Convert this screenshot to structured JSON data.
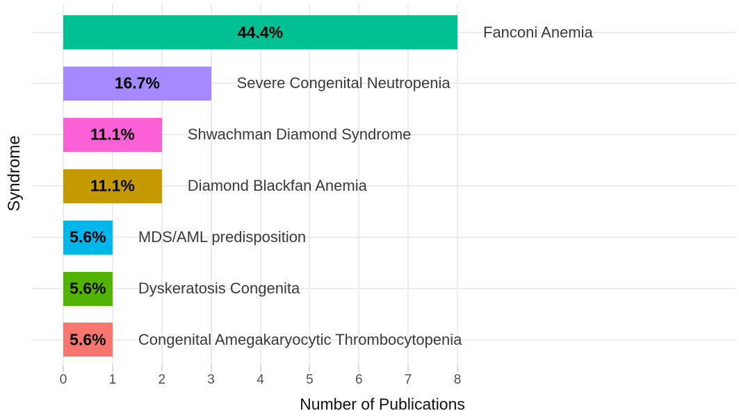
{
  "chart_data": {
    "type": "bar",
    "orientation": "horizontal",
    "title": "",
    "xlabel": "Number of Publications",
    "ylabel": "Syndrome",
    "xlim": [
      0,
      8
    ],
    "x_ticks": [
      0,
      1,
      2,
      3,
      4,
      5,
      6,
      7,
      8
    ],
    "grid": "major",
    "legend": "none",
    "background_color": "#ffffff",
    "gridline_color": "#ececec",
    "categories": [
      "Fanconi Anemia",
      "Severe Congenital Neutropenia",
      "Shwachman Diamond Syndrome",
      "Diamond Blackfan Anemia",
      "MDS/AML predisposition",
      "Dyskeratosis Congenita",
      "Congenital Amegakaryocytic Thrombocytopenia"
    ],
    "values": [
      8,
      3,
      2,
      2,
      1,
      1,
      1
    ],
    "bars": [
      {
        "category": "Fanconi Anemia",
        "value": 8,
        "pct_label": "44.4%",
        "color": "#00C094"
      },
      {
        "category": "Severe Congenital Neutropenia",
        "value": 3,
        "pct_label": "16.7%",
        "color": "#A58AFF"
      },
      {
        "category": "Shwachman Diamond Syndrome",
        "value": 2,
        "pct_label": "11.1%",
        "color": "#FB61D7"
      },
      {
        "category": "Diamond Blackfan Anemia",
        "value": 2,
        "pct_label": "11.1%",
        "color": "#C49A00"
      },
      {
        "category": "MDS/AML predisposition",
        "value": 1,
        "pct_label": "5.6%",
        "color": "#00B6EB"
      },
      {
        "category": "Dyskeratosis Congenita",
        "value": 1,
        "pct_label": "5.6%",
        "color": "#53B400"
      },
      {
        "category": "Congenital Amegakaryocytic Thrombocytopenia",
        "value": 1,
        "pct_label": "5.6%",
        "color": "#F8766D"
      }
    ]
  }
}
